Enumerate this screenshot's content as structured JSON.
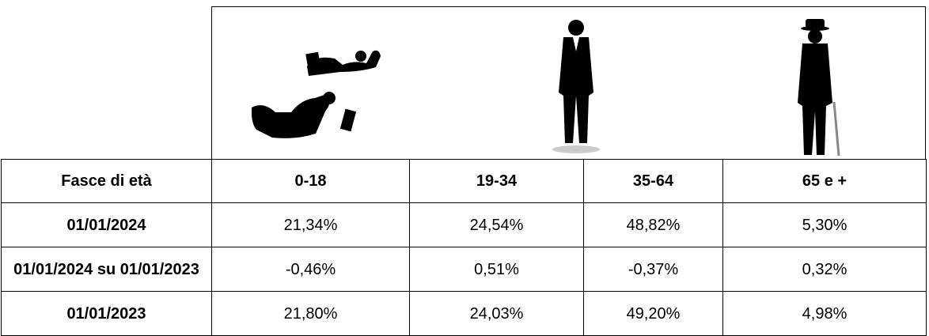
{
  "table": {
    "header": [
      "Fasce di età",
      "0-18",
      "19-34",
      "35-64",
      "65 e +"
    ],
    "rows": [
      [
        "01/01/2024",
        "21,34%",
        "24,54%",
        "48,82%",
        "5,30%"
      ],
      [
        "01/01/2024 su 01/01/2023",
        "-0,46%",
        "0,51%",
        "-0,37%",
        "0,32%"
      ],
      [
        "01/01/2023",
        "21,80%",
        "24,03%",
        "49,20%",
        "4,98%"
      ]
    ]
  }
}
